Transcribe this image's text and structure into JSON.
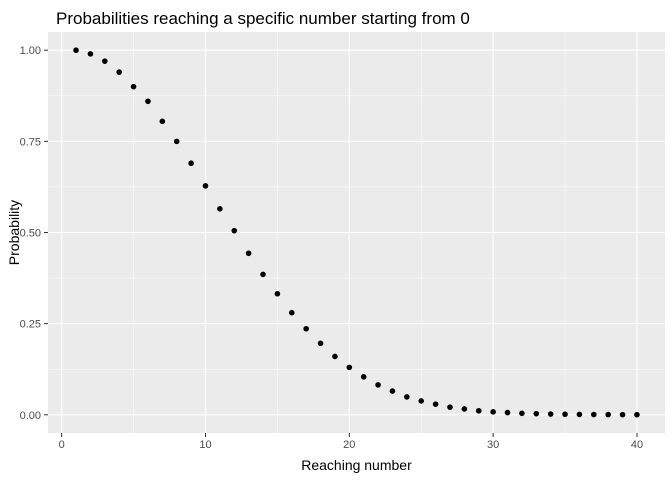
{
  "chart_data": {
    "type": "scatter",
    "title": "Probabilities reaching a specific number starting from 0",
    "xlabel": "Reaching number",
    "ylabel": "Probability",
    "xlim": [
      -0.95,
      41.95
    ],
    "ylim": [
      -0.05,
      1.05
    ],
    "x_ticks": [
      0,
      10,
      20,
      30,
      40
    ],
    "x_tick_labels": [
      "0",
      "10",
      "20",
      "30",
      "40"
    ],
    "y_ticks": [
      0,
      0.25,
      0.5,
      0.75,
      1.0
    ],
    "y_tick_labels": [
      "0.00",
      "0.25",
      "0.50",
      "0.75",
      "1.00"
    ],
    "grid": true,
    "colors": {
      "panel": "#ebebeb",
      "grid_major": "#ffffff",
      "point": "#000000",
      "tick": "#333333"
    },
    "points": [
      {
        "x": 1,
        "y": 1.0
      },
      {
        "x": 2,
        "y": 0.99
      },
      {
        "x": 3,
        "y": 0.97
      },
      {
        "x": 4,
        "y": 0.94
      },
      {
        "x": 5,
        "y": 0.9
      },
      {
        "x": 6,
        "y": 0.86
      },
      {
        "x": 7,
        "y": 0.805
      },
      {
        "x": 8,
        "y": 0.75
      },
      {
        "x": 9,
        "y": 0.69
      },
      {
        "x": 10,
        "y": 0.628
      },
      {
        "x": 11,
        "y": 0.565
      },
      {
        "x": 12,
        "y": 0.505
      },
      {
        "x": 13,
        "y": 0.443
      },
      {
        "x": 14,
        "y": 0.385
      },
      {
        "x": 15,
        "y": 0.332
      },
      {
        "x": 16,
        "y": 0.28
      },
      {
        "x": 17,
        "y": 0.236
      },
      {
        "x": 18,
        "y": 0.196
      },
      {
        "x": 19,
        "y": 0.16
      },
      {
        "x": 20,
        "y": 0.13
      },
      {
        "x": 21,
        "y": 0.104
      },
      {
        "x": 22,
        "y": 0.082
      },
      {
        "x": 23,
        "y": 0.065
      },
      {
        "x": 24,
        "y": 0.049
      },
      {
        "x": 25,
        "y": 0.038
      },
      {
        "x": 26,
        "y": 0.029
      },
      {
        "x": 27,
        "y": 0.021
      },
      {
        "x": 28,
        "y": 0.016
      },
      {
        "x": 29,
        "y": 0.011
      },
      {
        "x": 30,
        "y": 0.008
      },
      {
        "x": 31,
        "y": 0.006
      },
      {
        "x": 32,
        "y": 0.004
      },
      {
        "x": 33,
        "y": 0.003
      },
      {
        "x": 34,
        "y": 0.002
      },
      {
        "x": 35,
        "y": 0.0015
      },
      {
        "x": 36,
        "y": 0.001
      },
      {
        "x": 37,
        "y": 0.0007
      },
      {
        "x": 38,
        "y": 0.0005
      },
      {
        "x": 39,
        "y": 0.0003
      },
      {
        "x": 40,
        "y": 0.0002
      }
    ]
  }
}
